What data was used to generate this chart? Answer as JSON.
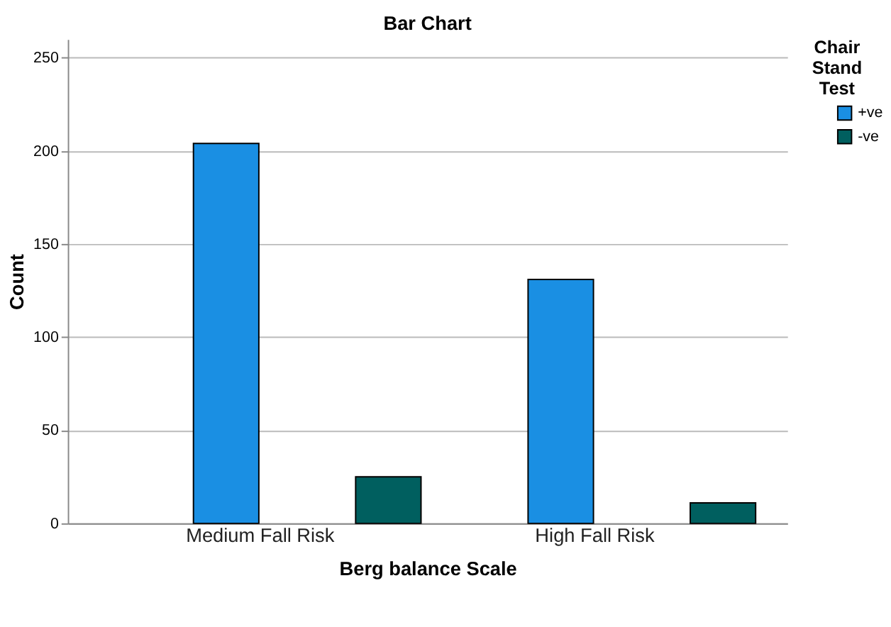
{
  "chart_data": {
    "type": "bar",
    "title": "Bar Chart",
    "xlabel": "Berg balance Scale",
    "ylabel": "Count",
    "legend_title": "Chair Stand Test",
    "categories": [
      "Medium Fall Risk",
      "High Fall Risk"
    ],
    "series": [
      {
        "name": "+ve",
        "color": "#1a8fe3",
        "values": [
          204,
          131
        ]
      },
      {
        "name": "-ve",
        "color": "#005f5f",
        "values": [
          25,
          11
        ]
      }
    ],
    "ylim": [
      0,
      260
    ],
    "yticks": [
      0,
      50,
      100,
      150,
      200,
      250
    ],
    "grid": "y",
    "legend": "top right"
  }
}
